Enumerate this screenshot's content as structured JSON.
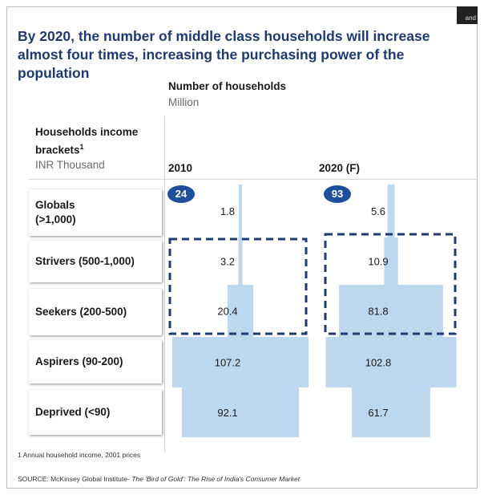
{
  "title": "By 2020, the number of middle class households will increase almost four times, increasing the purchasing power of the population",
  "chart_data": {
    "type": "bar",
    "title": "By 2020, the number of middle class households will increase almost four times, increasing the purchasing power of the population",
    "value_label": "Number of households",
    "value_unit": "Million",
    "category_header": "Households income brackets",
    "category_header_sup": "1",
    "category_unit": "INR Thousand",
    "categories": [
      "Globals (>1,000)",
      "Strivers (500-1,000)",
      "Seekers (200-500)",
      "Aspirers (90-200)",
      "Deprived (<90)"
    ],
    "series": [
      {
        "name": "2010",
        "values": [
          1.8,
          3.2,
          20.4,
          107.2,
          92.1
        ],
        "total": "24"
      },
      {
        "name": "2020 (F)",
        "values": [
          5.6,
          10.9,
          81.8,
          102.8,
          61.7
        ],
        "total": "93"
      }
    ],
    "highlight": [
      "Strivers (500-1,000)",
      "Seekers (200-500)"
    ],
    "bar_color": "#bdd7ee",
    "total_badge_color": "#1f4f9c",
    "highlight_color": "#1f3a6e"
  },
  "labels": {
    "globals_line1": "Globals",
    "globals_line2": "(>1,000)",
    "strivers": "Strivers (500-1,000)",
    "seekers": "Seekers (200-500)",
    "aspirers": "Aspirers (90-200)",
    "deprived": "Deprived (<90)",
    "brackets_line1": "Households income",
    "brackets_line2": "brackets"
  },
  "corner_text": "and",
  "footnote": "1 Annual household income, 2001 prices",
  "source_prefix": "SOURCE: McKinsey Global Institute- ",
  "source_title": "The 'Bird of Gold': The Rise of India's Consumer Market"
}
